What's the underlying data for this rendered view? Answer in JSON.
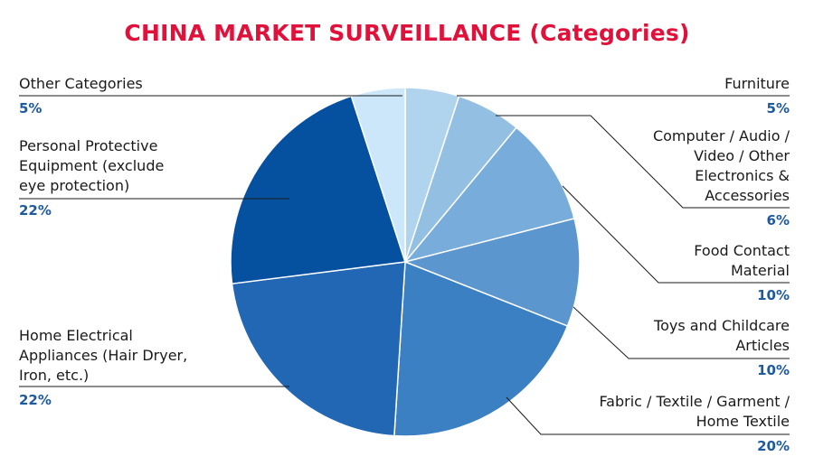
{
  "colors": {
    "title": "#e0113a",
    "percent": "#1d5aa0",
    "leader": "#1a1a1a"
  },
  "chart_data": {
    "type": "pie",
    "title": "CHINA MARKET SURVEILLANCE (Categories)",
    "slices": [
      {
        "label": "Furniture",
        "value": 5,
        "value_label": "5%",
        "color": "#b0d3ee"
      },
      {
        "label": "Computer / Audio / Video / Other Electronics & Accessories",
        "value": 6,
        "value_label": "6%",
        "color": "#93bfe3"
      },
      {
        "label": "Food Contact Material",
        "value": 10,
        "value_label": "10%",
        "color": "#78acdb"
      },
      {
        "label": "Toys and Childcare Articles",
        "value": 10,
        "value_label": "10%",
        "color": "#5c96cf"
      },
      {
        "label": "Fabric / Textile / Garment / Home Textile",
        "value": 20,
        "value_label": "20%",
        "color": "#3b80c3"
      },
      {
        "label": "Home Electrical Appliances (Hair Dryer, Iron, etc.)",
        "value": 22,
        "value_label": "22%",
        "color": "#2167b3"
      },
      {
        "label": "Personal Protective Equipment (exclude eye protection)",
        "value": 22,
        "value_label": "22%",
        "color": "#0650a0"
      },
      {
        "label": "Other Categories",
        "value": 5,
        "value_label": "5%",
        "color": "#cbe7f9"
      }
    ],
    "labels": [
      {
        "name": "Other Categories",
        "pct": "5%"
      },
      {
        "name": "Personal Protective\nEquipment (exclude\neye protection)",
        "pct": "22%"
      },
      {
        "name": "Home Electrical\nAppliances (Hair Dryer,\nIron, etc.)",
        "pct": "22%"
      },
      {
        "name": "Furniture",
        "pct": "5%"
      },
      {
        "name": "Computer / Audio /\nVideo / Other\nElectronics &\nAccessories",
        "pct": "6%"
      },
      {
        "name": "Food Contact\nMaterial",
        "pct": "10%"
      },
      {
        "name": "Toys and Childcare\nArticles",
        "pct": "10%"
      },
      {
        "name": "Fabric / Textile / Garment /\nHome Textile",
        "pct": "20%"
      }
    ]
  }
}
